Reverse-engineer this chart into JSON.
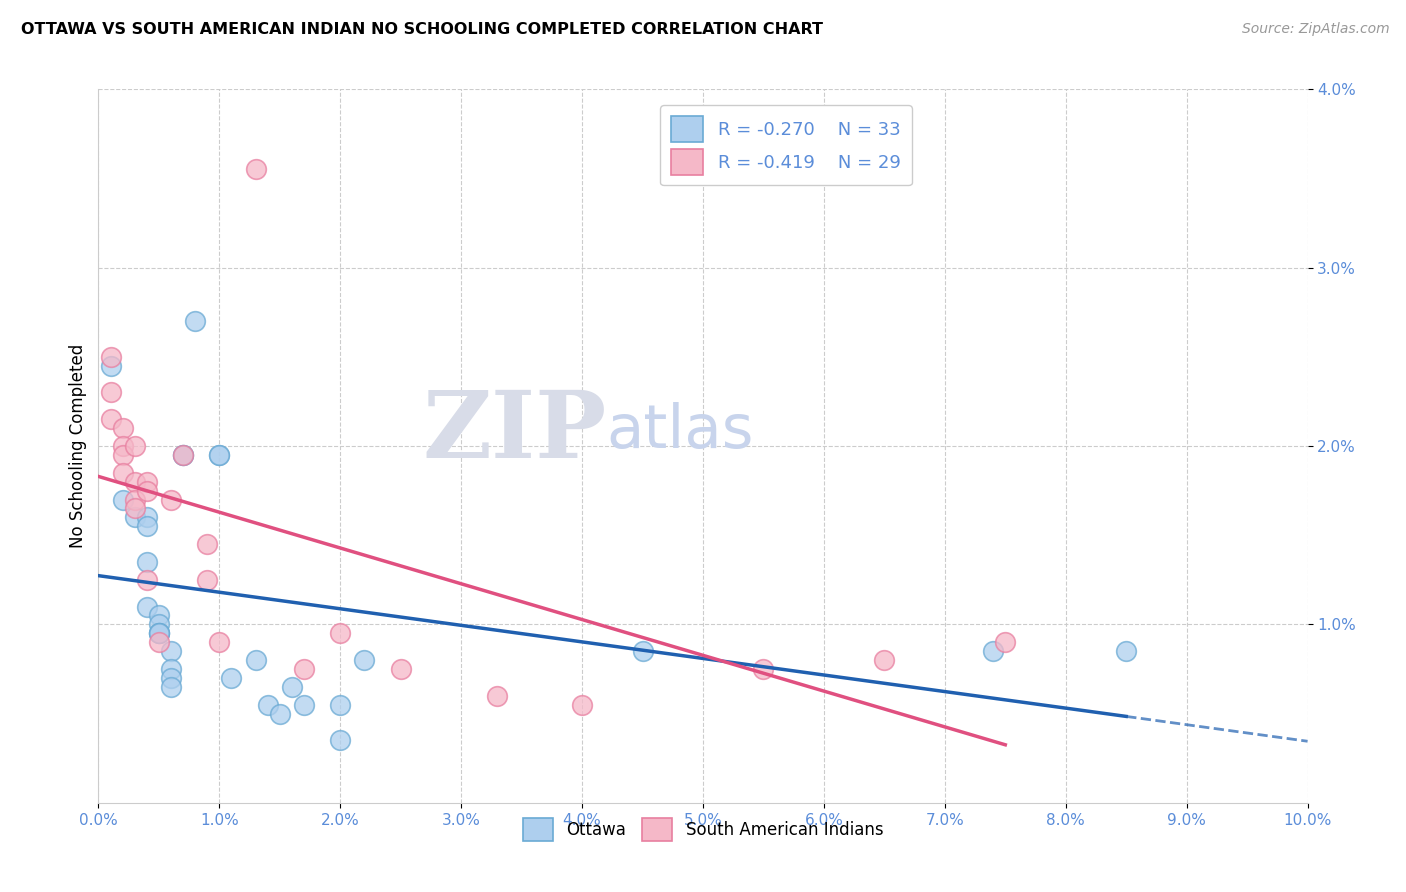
{
  "title": "OTTAWA VS SOUTH AMERICAN INDIAN NO SCHOOLING COMPLETED CORRELATION CHART",
  "source": "Source: ZipAtlas.com",
  "ylabel": "No Schooling Completed",
  "xlim": [
    0.0,
    0.1
  ],
  "ylim": [
    0.0,
    0.04
  ],
  "xticks": [
    0.0,
    0.01,
    0.02,
    0.03,
    0.04,
    0.05,
    0.06,
    0.07,
    0.08,
    0.09,
    0.1
  ],
  "yticks": [
    0.01,
    0.02,
    0.03,
    0.04
  ],
  "watermark_ZIP": "ZIP",
  "watermark_atlas": "atlas",
  "legend_R1": "R = -0.270",
  "legend_N1": "N = 33",
  "legend_R2": "R = -0.419",
  "legend_N2": "N = 29",
  "ottawa_fill": "#aecfee",
  "ottawa_edge": "#6aaad4",
  "sai_fill": "#f5b8c8",
  "sai_edge": "#e87fa0",
  "ottawa_line_color": "#2060b0",
  "sai_line_color": "#e05080",
  "background_color": "#ffffff",
  "grid_color": "#cccccc",
  "tick_color": "#5b8dd9",
  "ottawa_points": [
    [
      0.001,
      0.0245
    ],
    [
      0.002,
      0.017
    ],
    [
      0.003,
      0.016
    ],
    [
      0.004,
      0.016
    ],
    [
      0.004,
      0.0155
    ],
    [
      0.004,
      0.0135
    ],
    [
      0.004,
      0.011
    ],
    [
      0.005,
      0.0105
    ],
    [
      0.005,
      0.01
    ],
    [
      0.005,
      0.0095
    ],
    [
      0.005,
      0.0095
    ],
    [
      0.005,
      0.0095
    ],
    [
      0.006,
      0.0085
    ],
    [
      0.006,
      0.0075
    ],
    [
      0.006,
      0.007
    ],
    [
      0.006,
      0.0065
    ],
    [
      0.007,
      0.0195
    ],
    [
      0.007,
      0.0195
    ],
    [
      0.008,
      0.027
    ],
    [
      0.01,
      0.0195
    ],
    [
      0.01,
      0.0195
    ],
    [
      0.011,
      0.007
    ],
    [
      0.013,
      0.008
    ],
    [
      0.014,
      0.0055
    ],
    [
      0.015,
      0.005
    ],
    [
      0.016,
      0.0065
    ],
    [
      0.017,
      0.0055
    ],
    [
      0.02,
      0.0055
    ],
    [
      0.02,
      0.0035
    ],
    [
      0.022,
      0.008
    ],
    [
      0.045,
      0.0085
    ],
    [
      0.074,
      0.0085
    ],
    [
      0.085,
      0.0085
    ]
  ],
  "sai_points": [
    [
      0.001,
      0.025
    ],
    [
      0.001,
      0.023
    ],
    [
      0.001,
      0.0215
    ],
    [
      0.002,
      0.021
    ],
    [
      0.002,
      0.02
    ],
    [
      0.002,
      0.0195
    ],
    [
      0.002,
      0.0185
    ],
    [
      0.003,
      0.02
    ],
    [
      0.003,
      0.018
    ],
    [
      0.003,
      0.017
    ],
    [
      0.003,
      0.0165
    ],
    [
      0.004,
      0.018
    ],
    [
      0.004,
      0.0175
    ],
    [
      0.004,
      0.0125
    ],
    [
      0.005,
      0.009
    ],
    [
      0.006,
      0.017
    ],
    [
      0.007,
      0.0195
    ],
    [
      0.009,
      0.0145
    ],
    [
      0.009,
      0.0125
    ],
    [
      0.01,
      0.009
    ],
    [
      0.013,
      0.0355
    ],
    [
      0.017,
      0.0075
    ],
    [
      0.02,
      0.0095
    ],
    [
      0.025,
      0.0075
    ],
    [
      0.033,
      0.006
    ],
    [
      0.04,
      0.0055
    ],
    [
      0.055,
      0.0075
    ],
    [
      0.065,
      0.008
    ],
    [
      0.075,
      0.009
    ]
  ]
}
